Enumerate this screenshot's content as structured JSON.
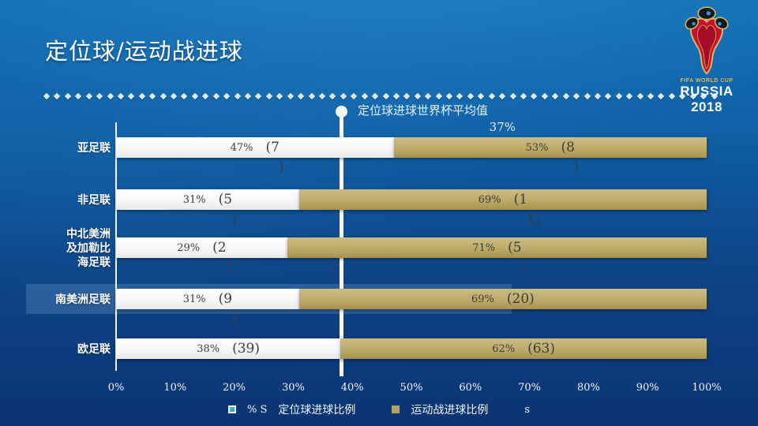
{
  "slide": {
    "title": "定位球/运动战进球"
  },
  "logo": {
    "fifa_line": "FIFA WORLD CUP",
    "year_line": "RUSSIA 2018"
  },
  "chart_data": {
    "type": "bar",
    "orientation": "horizontal",
    "stacked": true,
    "title": "定位球/运动战进球",
    "categories": [
      "亚足联",
      "非足联",
      "中北美洲及加勒比海足联",
      "南美洲足联",
      "欧足联"
    ],
    "series": [
      {
        "name": "定位球进球比例",
        "color": "#f5f5f5",
        "values_pct": [
          47,
          31,
          29,
          31,
          38
        ],
        "goal_counts": [
          7,
          5,
          2,
          9,
          39
        ]
      },
      {
        "name": "运动战进球比例",
        "color": "#b9a866",
        "values_pct": [
          53,
          69,
          71,
          69,
          62
        ],
        "goal_counts": [
          8,
          11,
          5,
          20,
          63
        ]
      }
    ],
    "x_ticks": [
      "0%",
      "10%",
      "20%",
      "30%",
      "40%",
      "50%",
      "60%",
      "70%",
      "80%",
      "90%",
      "100%"
    ],
    "xlim": [
      0,
      100
    ],
    "grid": false,
    "legend_position": "bottom",
    "average_line": {
      "label": "定位球进球世界杯平均值",
      "value_label": "37%",
      "value": 37
    }
  },
  "display": {
    "rows": [
      {
        "label_lines": [
          "亚足联"
        ],
        "highlight": false,
        "white": {
          "pct": "47%",
          "count_line1": "(7",
          "count_line2": ")",
          "width_pct": 47
        },
        "gold": {
          "pct": "53%",
          "count_line1": "(8",
          "count_line2": ")",
          "width_pct": 53
        }
      },
      {
        "label_lines": [
          "非足联"
        ],
        "highlight": false,
        "white": {
          "pct": "31%",
          "count_line1": "(5",
          "count_line2": ")",
          "width_pct": 31
        },
        "gold": {
          "pct": "69%",
          "count_line1": "(1",
          "count_line2": "1)",
          "width_pct": 69
        }
      },
      {
        "label_lines": [
          "中北美洲",
          "及加勒比",
          "海足联"
        ],
        "highlight": false,
        "white": {
          "pct": "29%",
          "count_line1": "(2",
          "count_line2": ")",
          "width_pct": 29
        },
        "gold": {
          "pct": "71%",
          "count_line1": "(5",
          "count_line2": ")",
          "width_pct": 71
        }
      },
      {
        "label_lines": [
          "南美洲足联"
        ],
        "highlight": true,
        "white": {
          "pct": "31%",
          "count_line1": "(9",
          "count_line2": ")",
          "width_pct": 31
        },
        "gold": {
          "pct": "69%",
          "count_line1": "(20)",
          "count_line2": "",
          "width_pct": 69
        }
      },
      {
        "label_lines": [
          "欧足联"
        ],
        "highlight": false,
        "white": {
          "pct": "38%",
          "count_line1": "(39)",
          "count_line2": "",
          "width_pct": 38
        },
        "gold": {
          "pct": "62%",
          "count_line1": "(63)",
          "count_line2": "",
          "width_pct": 62
        }
      }
    ],
    "legend": {
      "stray_prefix": "% S",
      "item1": "定位球进球比例",
      "item2": "运动战进球比例",
      "stray_suffix": "s"
    }
  }
}
